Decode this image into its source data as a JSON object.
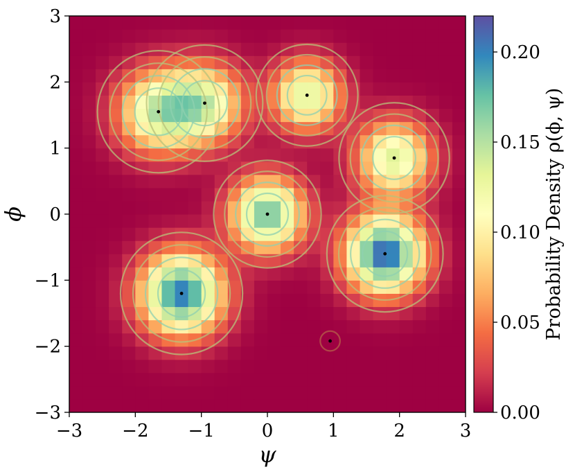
{
  "chart_data": {
    "type": "heatmap",
    "title": "",
    "xlabel": "ψ",
    "ylabel": "ϕ",
    "xlim": [
      -3,
      3
    ],
    "ylim": [
      -3,
      3
    ],
    "x_ticks": [
      -3,
      -2,
      -1,
      0,
      1,
      2,
      3
    ],
    "y_ticks": [
      -3,
      -2,
      -1,
      0,
      1,
      2,
      3
    ],
    "x_tick_labels": [
      "−3",
      "−2",
      "−1",
      "0",
      "1",
      "2",
      "3"
    ],
    "y_tick_labels": [
      "−3",
      "−2",
      "−1",
      "0",
      "1",
      "2",
      "3"
    ],
    "grid": false,
    "grid_cells": 30,
    "colormap": "Spectral",
    "colorbar": {
      "label": "Probability Density ρ(ϕ, ψ)",
      "range": [
        0,
        0.22
      ],
      "ticks": [
        0,
        0.05,
        0.1,
        0.15,
        0.2
      ],
      "tick_labels": [
        "0.00",
        "0.05",
        "0.10",
        "0.15",
        "0.20"
      ]
    },
    "peaks": [
      {
        "x": -1.65,
        "y": 1.55,
        "density": 0.135,
        "spread": 0.42
      },
      {
        "x": -0.95,
        "y": 1.68,
        "density": 0.125,
        "spread": 0.4
      },
      {
        "x": 0.6,
        "y": 1.8,
        "density": 0.135,
        "spread": 0.35
      },
      {
        "x": 1.92,
        "y": 0.85,
        "density": 0.135,
        "spread": 0.38
      },
      {
        "x": 0.0,
        "y": 0.0,
        "density": 0.175,
        "spread": 0.37
      },
      {
        "x": 1.78,
        "y": -0.6,
        "density": 0.215,
        "spread": 0.4
      },
      {
        "x": -1.3,
        "y": -1.2,
        "density": 0.205,
        "spread": 0.42
      },
      {
        "x": 0.95,
        "y": -1.92,
        "density": 0.0,
        "spread": 0.15
      }
    ]
  }
}
